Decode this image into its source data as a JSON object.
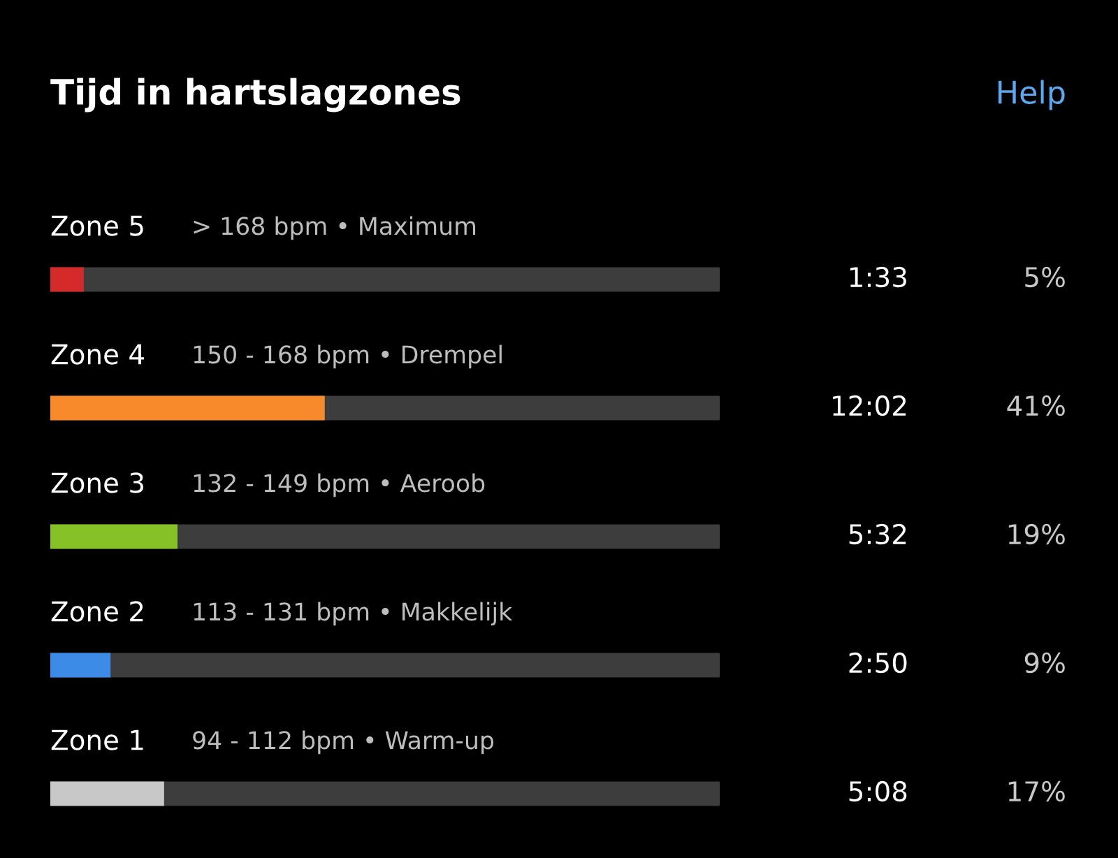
{
  "chart_data": {
    "type": "bar",
    "orientation": "horizontal",
    "title": "Tijd in hartslagzones",
    "categories": [
      "Zone 5",
      "Zone 4",
      "Zone 3",
      "Zone 2",
      "Zone 1"
    ],
    "values": [
      5,
      41,
      19,
      9,
      17
    ],
    "colors": [
      "#d42a2a",
      "#f7892b",
      "#84c225",
      "#3c8ce7",
      "#c8c8c8"
    ],
    "value_labels": [
      "5%",
      "41%",
      "19%",
      "9%",
      "17%"
    ],
    "xlim": [
      0,
      100
    ],
    "tick_labels": false,
    "annotations": [
      "> 168 bpm • Maximum",
      "150 - 168 bpm • Drempel",
      "132 - 149 bpm • Aeroob",
      "113 - 131 bpm • Makkelijk",
      "94 - 112 bpm • Warm-up",
      "1:33",
      "12:02",
      "5:32",
      "2:50",
      "5:08",
      "Help"
    ]
  }
}
